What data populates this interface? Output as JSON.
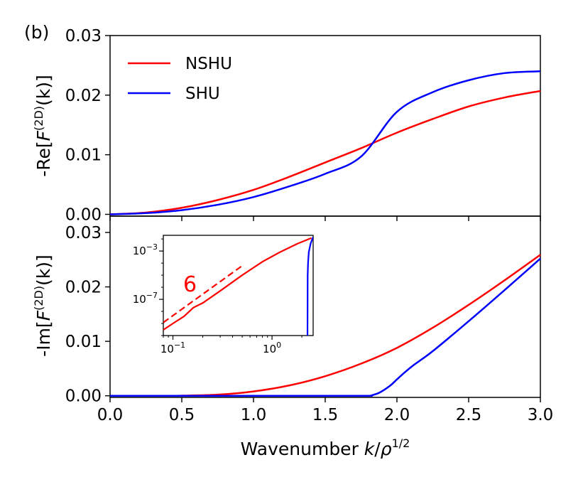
{
  "panel_label": "(b)",
  "colors": {
    "nshu": "#ff0000",
    "shu": "#0000ff",
    "axis": "#000000"
  },
  "chart_data": [
    {
      "type": "line",
      "panel": "top",
      "ylabel_prefix": "-Re[",
      "ylabel_func": "F",
      "ylabel_sup": "(2D)",
      "ylabel_suffix": "(k)]",
      "xlim": [
        0,
        3
      ],
      "ylim": [
        -0.0003,
        0.03
      ],
      "yticks": [
        0.0,
        0.01,
        0.02,
        0.03
      ],
      "ytick_labels": [
        "0.00",
        "0.01",
        "0.02",
        "0.03"
      ],
      "xticks": [
        0,
        0.5,
        1,
        1.5,
        2,
        2.5,
        3
      ],
      "legend": {
        "position": "top-left",
        "entries": [
          "NSHU",
          "SHU"
        ]
      },
      "x": [
        0,
        0.25,
        0.5,
        0.75,
        1.0,
        1.25,
        1.5,
        1.75,
        2.0,
        2.25,
        2.5,
        2.75,
        3.0
      ],
      "series": [
        {
          "name": "NSHU",
          "color": "#ff0000",
          "values": [
            0.0,
            0.0003,
            0.0011,
            0.0024,
            0.0041,
            0.0063,
            0.0087,
            0.0111,
            0.0137,
            0.016,
            0.0181,
            0.0196,
            0.0207
          ]
        },
        {
          "name": "SHU",
          "color": "#0000ff",
          "values": [
            0.0,
            0.0002,
            0.0007,
            0.0016,
            0.0029,
            0.0047,
            0.0068,
            0.0097,
            0.0172,
            0.0205,
            0.0225,
            0.0237,
            0.024
          ]
        }
      ]
    },
    {
      "type": "line",
      "panel": "bottom",
      "ylabel_prefix": "-Im[",
      "ylabel_func": "F",
      "ylabel_sup": "(2D)",
      "ylabel_suffix": "(k)]",
      "xlabel_text": "Wavenumber ",
      "xlabel_k": "k",
      "xlabel_slash": "/",
      "xlabel_rho": "ρ",
      "xlabel_sup": "1/2",
      "xlim": [
        0,
        3
      ],
      "ylim": [
        -0.0003,
        0.033
      ],
      "yticks": [
        0.0,
        0.01,
        0.02,
        0.03
      ],
      "ytick_labels": [
        "0.00",
        "0.01",
        "0.02",
        "0.03"
      ],
      "xticks": [
        0,
        0.5,
        1,
        1.5,
        2,
        2.5,
        3
      ],
      "xtick_labels": [
        "0.0",
        "0.5",
        "1.0",
        "1.5",
        "2.0",
        "2.5",
        "3.0"
      ],
      "x": [
        0,
        0.25,
        0.5,
        0.75,
        1.0,
        1.25,
        1.5,
        1.75,
        2.0,
        2.25,
        2.5,
        2.75,
        3.0
      ],
      "series": [
        {
          "name": "NSHU",
          "color": "#ff0000",
          "values": [
            0.0,
            0.0,
            2e-05,
            0.0002,
            0.0008,
            0.0019,
            0.0036,
            0.0059,
            0.0088,
            0.0125,
            0.0167,
            0.0212,
            0.0259
          ]
        },
        {
          "name": "SHU",
          "color": "#0000ff",
          "x": [
            0,
            0.5,
            1.0,
            1.5,
            1.8,
            1.82,
            1.88,
            1.95,
            2.0,
            2.05,
            2.12,
            2.25,
            2.5,
            2.75,
            3.0
          ],
          "values": [
            0.0,
            0.0,
            0.0,
            0.0,
            0.0,
            5e-05,
            0.0006,
            0.0018,
            0.003,
            0.0042,
            0.0057,
            0.0082,
            0.0137,
            0.0194,
            0.0252
          ]
        }
      ]
    },
    {
      "type": "line",
      "panel": "inset",
      "xscale": "log",
      "yscale": "log",
      "xlim": [
        0.08,
        2.6
      ],
      "ylim": [
        1e-10,
        0.02
      ],
      "xtick_labels": [
        {
          "base": "10",
          "exp": "−1",
          "value": 0.1
        },
        {
          "base": "10",
          "exp": "0",
          "value": 1.0
        }
      ],
      "ytick_labels": [
        {
          "base": "10",
          "exp": "−3",
          "value": 0.001
        },
        {
          "base": "10",
          "exp": "−7",
          "value": 1e-07
        }
      ],
      "annotation": {
        "text": "6",
        "color": "#ff0000"
      },
      "series": [
        {
          "name": "NSHU",
          "color": "#ff0000",
          "style": "solid",
          "x": [
            0.08,
            0.1,
            0.13,
            0.16,
            0.2,
            0.3,
            0.5,
            0.8,
            1.2,
            1.8,
            2.5
          ],
          "values": [
            3e-10,
            1e-09,
            4e-09,
            2e-08,
            5e-08,
            5e-07,
            1e-05,
            0.00013,
            0.0008,
            0.004,
            0.012
          ]
        },
        {
          "name": "NSHU fit",
          "color": "#ff0000",
          "style": "dashed",
          "x": [
            0.08,
            0.5
          ],
          "values": [
            1.2e-09,
            6e-05
          ]
        },
        {
          "name": "SHU",
          "color": "#0000ff",
          "style": "solid",
          "x": [
            2.28,
            2.29,
            2.31,
            2.35,
            2.45,
            2.55,
            2.6
          ],
          "values": [
            1e-10,
            1e-05,
            0.0001,
            0.0008,
            0.004,
            0.01,
            0.014
          ]
        }
      ]
    }
  ]
}
